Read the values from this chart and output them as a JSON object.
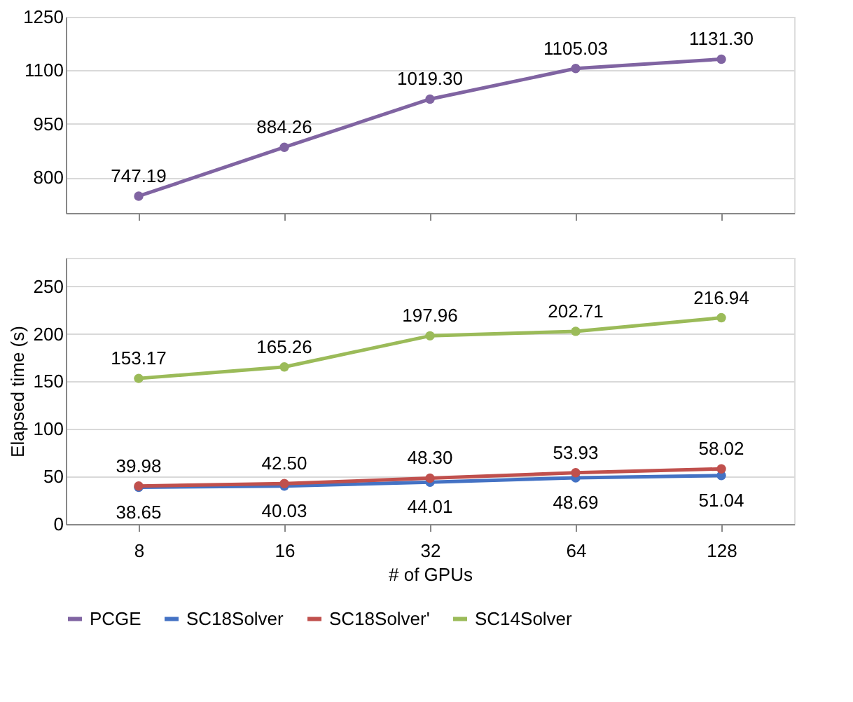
{
  "chart_data": [
    {
      "type": "line",
      "categories": [
        "8",
        "16",
        "32",
        "64",
        "128"
      ],
      "series": [
        {
          "name": "PCGE",
          "color": "#8064a2",
          "values": [
            747.19,
            884.26,
            1019.3,
            1105.03,
            1131.3
          ],
          "value_labels": [
            "747.19",
            "884.26",
            "1019.30",
            "1105.03",
            "1131.30"
          ]
        }
      ],
      "ylim": [
        700,
        1250
      ],
      "yticks": [
        800,
        950,
        1100,
        1250
      ],
      "grid": "y",
      "marker": "circle",
      "line_style": "solid",
      "tick_labels": "y"
    },
    {
      "type": "line",
      "categories": [
        "8",
        "16",
        "32",
        "64",
        "128"
      ],
      "xlabel": "# of GPUs",
      "ylabel": "Elapsed time (s)",
      "series": [
        {
          "name": "SC18Solver",
          "color": "#4472c4",
          "values": [
            38.65,
            40.03,
            44.01,
            48.69,
            51.04
          ],
          "value_labels": [
            "38.65",
            "40.03",
            "44.01",
            "48.69",
            "51.04"
          ]
        },
        {
          "name": "SC18Solver'",
          "color": "#c0504d",
          "values": [
            39.98,
            42.5,
            48.3,
            53.93,
            58.02
          ],
          "value_labels": [
            "39.98",
            "42.50",
            "48.30",
            "53.93",
            "58.02"
          ]
        },
        {
          "name": "SC14Solver",
          "color": "#9bbb59",
          "values": [
            153.17,
            165.26,
            197.96,
            202.71,
            216.94
          ],
          "value_labels": [
            "153.17",
            "165.26",
            "197.96",
            "202.71",
            "216.94"
          ]
        }
      ],
      "ylim": [
        0,
        280
      ],
      "yticks": [
        0,
        50,
        100,
        150,
        200,
        250
      ],
      "grid": "y",
      "marker": "circle",
      "line_style": "solid",
      "legend": "bottom"
    }
  ]
}
